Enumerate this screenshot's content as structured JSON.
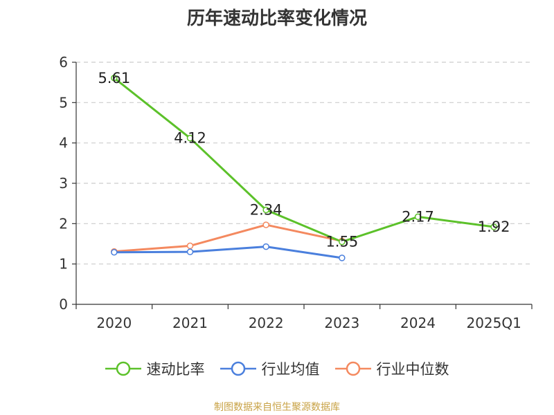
{
  "title": "历年速动比率变化情况",
  "source": "制图数据来自恒生聚源数据库",
  "chart_data": {
    "type": "line",
    "categories": [
      "2020",
      "2021",
      "2022",
      "2023",
      "2024",
      "2025Q1"
    ],
    "ylim": [
      0,
      6
    ],
    "yticks": [
      0,
      1,
      2,
      3,
      4,
      5,
      6
    ],
    "grid": true,
    "legend_position": "bottom",
    "series": [
      {
        "name": "速动比率",
        "color": "#5cc12a",
        "values": [
          5.61,
          4.12,
          2.34,
          1.55,
          2.17,
          1.92
        ],
        "labels": [
          "5.61",
          "4.12",
          "2.34",
          "1.55",
          "2.17",
          "1.92"
        ]
      },
      {
        "name": "行业均值",
        "color": "#4a7fdd",
        "values": [
          1.29,
          1.3,
          1.43,
          1.15,
          null,
          null
        ]
      },
      {
        "name": "行业中位数",
        "color": "#f4895f",
        "values": [
          1.31,
          1.45,
          1.97,
          1.57,
          null,
          null
        ]
      }
    ]
  }
}
